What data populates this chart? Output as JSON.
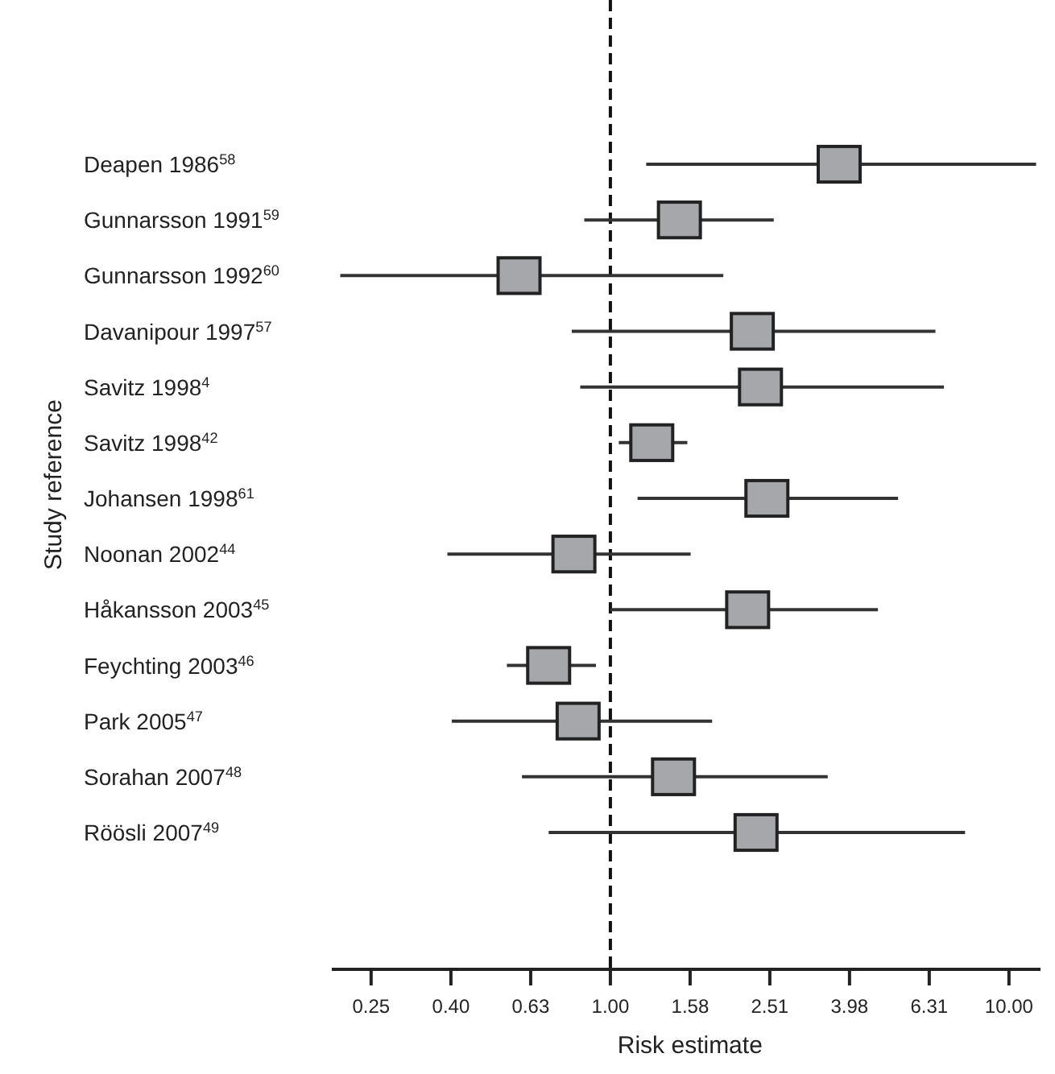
{
  "chart_data": {
    "type": "scatter",
    "orientation": "horizontal",
    "xlabel": "Risk estimate",
    "ylabel": "Study reference",
    "categories": [
      "Deapen 1986$^{58}$",
      "Gunnarsson 1991$^{59}$",
      "Gunnarsson 1992$^{60}$",
      "Davanipour 1997$^{57}$",
      "Savitz 1998$^{4}$",
      "Savitz 1998$^{42}$",
      "Johansen 1998$^{61}$",
      "Noonan 2002$^{44}$",
      "Håkansson 2003$^{45}$",
      "Feychting 2003$^{46}$",
      "Park 2005$^{47}$",
      "Sorahan 2007$^{48}$",
      "Röösli 2007$^{49}$"
    ],
    "series": [
      {
        "color": "#a6a7ab",
        "values": [
          3.75,
          1.49,
          0.59,
          2.27,
          2.38,
          1.27,
          2.47,
          0.81,
          2.21,
          0.7,
          0.83,
          1.44,
          2.32
        ],
        "errors": [
          [
            1.23,
            11.7
          ],
          [
            0.86,
            2.57
          ],
          [
            0.21,
            1.92
          ],
          [
            0.8,
            6.54
          ],
          [
            0.84,
            6.87
          ],
          [
            1.05,
            1.56
          ],
          [
            1.17,
            5.27
          ],
          [
            0.39,
            1.59
          ],
          [
            1.0,
            4.69
          ],
          [
            0.55,
            0.92
          ],
          [
            0.4,
            1.8
          ],
          [
            0.6,
            3.51
          ],
          [
            0.7,
            7.76
          ]
        ]
      }
    ],
    "marker": "square",
    "log": "x",
    "xlim": [
      0.2,
      12
    ],
    "xticks": [
      {
        "value": 0.251,
        "label": "0.25"
      },
      {
        "value": 0.398,
        "label": "0.40"
      },
      {
        "value": 0.631,
        "label": "0.63"
      },
      {
        "value": 1,
        "label": "1.00"
      },
      {
        "value": 1.585,
        "label": "1.58"
      },
      {
        "value": 2.512,
        "label": "2.51"
      },
      {
        "value": 3.981,
        "label": "3.98"
      },
      {
        "value": 6.31,
        "label": "6.31"
      },
      {
        "value": 10,
        "label": "10.00"
      }
    ],
    "ref_lines": [
      {
        "axis": "x",
        "value": 1,
        "line_style": "dashed",
        "color": "#111111"
      }
    ],
    "grid": false
  }
}
